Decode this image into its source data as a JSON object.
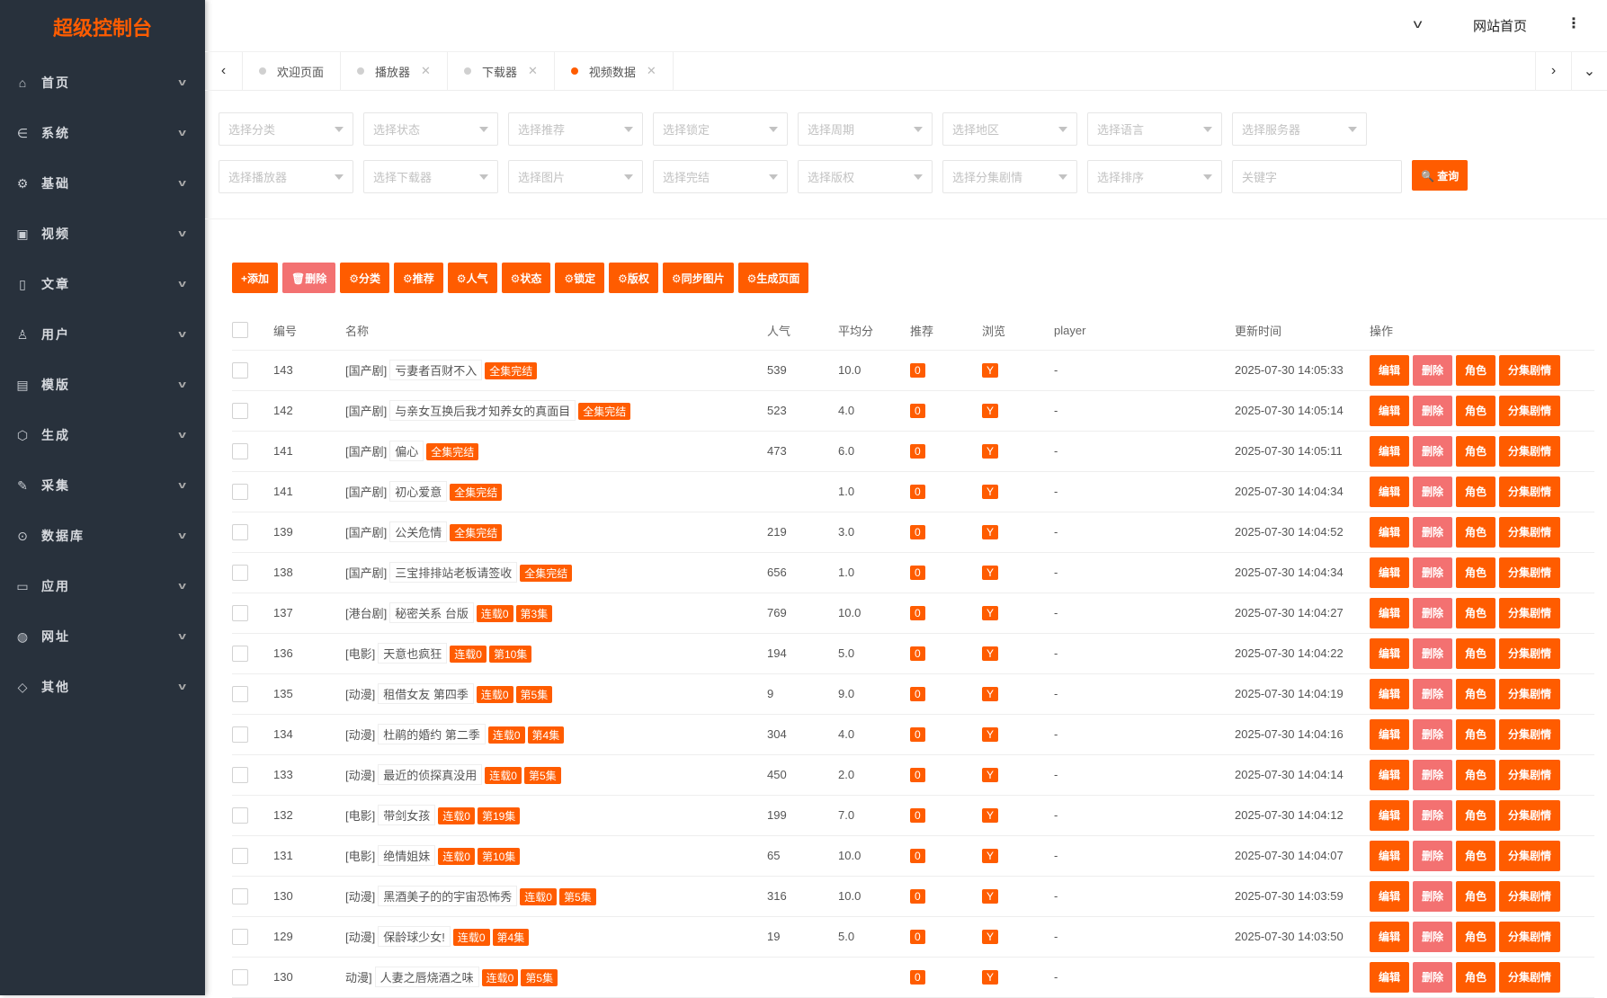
{
  "sidebar": {
    "logo": "超级控制台",
    "items": [
      {
        "label": "首页",
        "icon": "home-icon",
        "glyph": "⌂"
      },
      {
        "label": "系统",
        "icon": "system-icon",
        "glyph": "∈"
      },
      {
        "label": "基础",
        "icon": "gear-icon",
        "glyph": "⚙"
      },
      {
        "label": "视频",
        "icon": "video-icon",
        "glyph": "▣"
      },
      {
        "label": "文章",
        "icon": "document-icon",
        "glyph": "▯"
      },
      {
        "label": "用户",
        "icon": "users-icon",
        "glyph": "♙"
      },
      {
        "label": "模版",
        "icon": "template-icon",
        "glyph": "▤"
      },
      {
        "label": "生成",
        "icon": "cube-icon",
        "glyph": "⬡"
      },
      {
        "label": "采集",
        "icon": "pencil-icon",
        "glyph": "✎"
      },
      {
        "label": "数据库",
        "icon": "code-icon",
        "glyph": "⊙"
      },
      {
        "label": "应用",
        "icon": "tablet-icon",
        "glyph": "▭"
      },
      {
        "label": "网址",
        "icon": "globe-icon",
        "glyph": "◍"
      },
      {
        "label": "其他",
        "icon": "tag-icon",
        "glyph": "◇"
      }
    ]
  },
  "topbar": {
    "home_link": "网站首页"
  },
  "tabs": [
    {
      "label": "欢迎页面",
      "closable": false,
      "active": false
    },
    {
      "label": "播放器",
      "closable": true,
      "active": false
    },
    {
      "label": "下载器",
      "closable": true,
      "active": false
    },
    {
      "label": "视频数据",
      "closable": true,
      "active": true
    }
  ],
  "filters": {
    "row1": [
      "选择分类",
      "选择状态",
      "选择推荐",
      "选择锁定",
      "选择周期",
      "选择地区",
      "选择语言",
      "选择服务器"
    ],
    "row2": [
      "选择播放器",
      "选择下载器",
      "选择图片",
      "选择完结",
      "选择版权",
      "选择分集剧情",
      "选择排序"
    ],
    "keyword_placeholder": "关键字",
    "query_label": "🔍 查询"
  },
  "toolbar": [
    {
      "label": "+添加",
      "style": "primary"
    },
    {
      "label": "🗑删除",
      "style": "danger"
    },
    {
      "label": "⚙分类",
      "style": "primary"
    },
    {
      "label": "⚙推荐",
      "style": "primary"
    },
    {
      "label": "⚙人气",
      "style": "primary"
    },
    {
      "label": "⚙状态",
      "style": "primary"
    },
    {
      "label": "⚙锁定",
      "style": "primary"
    },
    {
      "label": "⚙版权",
      "style": "primary"
    },
    {
      "label": "⚙同步图片",
      "style": "primary"
    },
    {
      "label": "⚙生成页面",
      "style": "primary"
    }
  ],
  "table": {
    "columns": [
      "编号",
      "名称",
      "人气",
      "平均分",
      "推荐",
      "浏览",
      "player",
      "更新时间",
      "操作"
    ],
    "actions": [
      "编辑",
      "删除",
      "角色",
      "分集剧情"
    ],
    "rows": [
      {
        "id": "143",
        "cat": "[国产剧]",
        "name": "亏妻者百财不入",
        "badges": [
          "全集完结"
        ],
        "hits": "539",
        "score": "10.0",
        "rec": "0",
        "view": "Y",
        "player": "-",
        "time": "2025-07-30 14:05:33"
      },
      {
        "id": "142",
        "cat": "[国产剧]",
        "name": "与亲女互换后我才知养女的真面目",
        "badges": [
          "全集完结"
        ],
        "hits": "523",
        "score": "4.0",
        "rec": "0",
        "view": "Y",
        "player": "-",
        "time": "2025-07-30 14:05:14"
      },
      {
        "id": "141",
        "cat": "[国产剧]",
        "name": "偏心",
        "badges": [
          "全集完结"
        ],
        "hits": "473",
        "score": "6.0",
        "rec": "0",
        "view": "Y",
        "player": "-",
        "time": "2025-07-30 14:05:11"
      },
      {
        "id": "141",
        "cat": "[国产剧]",
        "name": "初心爱意",
        "badges": [
          "全集完结"
        ],
        "hits": "",
        "score": "1.0",
        "rec": "0",
        "view": "Y",
        "player": "-",
        "time": "2025-07-30 14:04:34"
      },
      {
        "id": "139",
        "cat": "[国产剧]",
        "name": "公关危情",
        "badges": [
          "全集完结"
        ],
        "hits": "219",
        "score": "3.0",
        "rec": "0",
        "view": "Y",
        "player": "-",
        "time": "2025-07-30 14:04:52"
      },
      {
        "id": "138",
        "cat": "[国产剧]",
        "name": "三宝排排站老板请签收",
        "badges": [
          "全集完结"
        ],
        "hits": "656",
        "score": "1.0",
        "rec": "0",
        "view": "Y",
        "player": "-",
        "time": "2025-07-30 14:04:34"
      },
      {
        "id": "137",
        "cat": "[港台剧]",
        "name": "秘密关系 台版",
        "badges": [
          "连载0",
          "第3集"
        ],
        "hits": "769",
        "score": "10.0",
        "rec": "0",
        "view": "Y",
        "player": "-",
        "time": "2025-07-30 14:04:27"
      },
      {
        "id": "136",
        "cat": "[电影]",
        "name": "天意也疯狂",
        "badges": [
          "连载0",
          "第10集"
        ],
        "hits": "194",
        "score": "5.0",
        "rec": "0",
        "view": "Y",
        "player": "-",
        "time": "2025-07-30 14:04:22"
      },
      {
        "id": "135",
        "cat": "[动漫]",
        "name": "租借女友 第四季",
        "badges": [
          "连载0",
          "第5集"
        ],
        "hits": "9",
        "score": "9.0",
        "rec": "0",
        "view": "Y",
        "player": "-",
        "time": "2025-07-30 14:04:19"
      },
      {
        "id": "134",
        "cat": "[动漫]",
        "name": "杜鹃的婚约 第二季",
        "badges": [
          "连载0",
          "第4集"
        ],
        "hits": "304",
        "score": "4.0",
        "rec": "0",
        "view": "Y",
        "player": "-",
        "time": "2025-07-30 14:04:16"
      },
      {
        "id": "133",
        "cat": "[动漫]",
        "name": "最近的侦探真没用",
        "badges": [
          "连载0",
          "第5集"
        ],
        "hits": "450",
        "score": "2.0",
        "rec": "0",
        "view": "Y",
        "player": "-",
        "time": "2025-07-30 14:04:14"
      },
      {
        "id": "132",
        "cat": "[电影]",
        "name": "带剑女孩",
        "badges": [
          "连载0",
          "第19集"
        ],
        "hits": "199",
        "score": "7.0",
        "rec": "0",
        "view": "Y",
        "player": "-",
        "time": "2025-07-30 14:04:12"
      },
      {
        "id": "131",
        "cat": "[电影]",
        "name": "绝情姐妹",
        "badges": [
          "连载0",
          "第10集"
        ],
        "hits": "65",
        "score": "10.0",
        "rec": "0",
        "view": "Y",
        "player": "-",
        "time": "2025-07-30 14:04:07"
      },
      {
        "id": "130",
        "cat": "[动漫]",
        "name": "黑酒美子的的宇宙恐怖秀",
        "badges": [
          "连载0",
          "第5集"
        ],
        "hits": "316",
        "score": "10.0",
        "rec": "0",
        "view": "Y",
        "player": "-",
        "time": "2025-07-30 14:03:59"
      },
      {
        "id": "129",
        "cat": "[动漫]",
        "name": "保龄球少女!",
        "badges": [
          "连载0",
          "第4集"
        ],
        "hits": "19",
        "score": "5.0",
        "rec": "0",
        "view": "Y",
        "player": "-",
        "time": "2025-07-30 14:03:50"
      },
      {
        "id": "130",
        "cat": "动漫]",
        "name": "人妻之唇烧酒之味",
        "badges": [
          "连载0",
          "第5集"
        ],
        "hits": "",
        "score": "",
        "rec": "0",
        "view": "Y",
        "player": "-",
        "time": ""
      }
    ]
  },
  "colors": {
    "accent": "#ff5c00",
    "danger": "#f37171",
    "sidebar": "#28313c",
    "time": "#e60000"
  }
}
